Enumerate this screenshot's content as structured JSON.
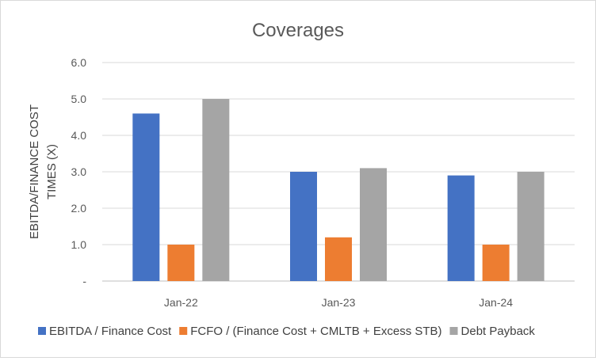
{
  "chart_data": {
    "type": "bar",
    "title": "Coverages",
    "ylabel_lines": [
      "EBITDA/FINANCE COST",
      "TIMES (X)"
    ],
    "xlabel": "",
    "categories": [
      "Jan-22",
      "Jan-23",
      "Jan-24"
    ],
    "ylim": [
      0,
      6
    ],
    "yticks": [
      0,
      1,
      2,
      3,
      4,
      5,
      6
    ],
    "ytick_labels": [
      "-",
      "1.0",
      "2.0",
      "3.0",
      "4.0",
      "5.0",
      "6.0"
    ],
    "grid": true,
    "legend_position": "bottom",
    "series": [
      {
        "name": "EBITDA / Finance Cost",
        "color": "#4472c4",
        "values": [
          4.6,
          3.0,
          2.9
        ]
      },
      {
        "name": "FCFO / (Finance Cost + CMLTB + Excess STB)",
        "color": "#ed7d31",
        "values": [
          1.0,
          1.2,
          1.0
        ]
      },
      {
        "name": "Debt Payback",
        "color": "#a5a5a5",
        "values": [
          5.0,
          3.1,
          3.0
        ]
      }
    ]
  }
}
